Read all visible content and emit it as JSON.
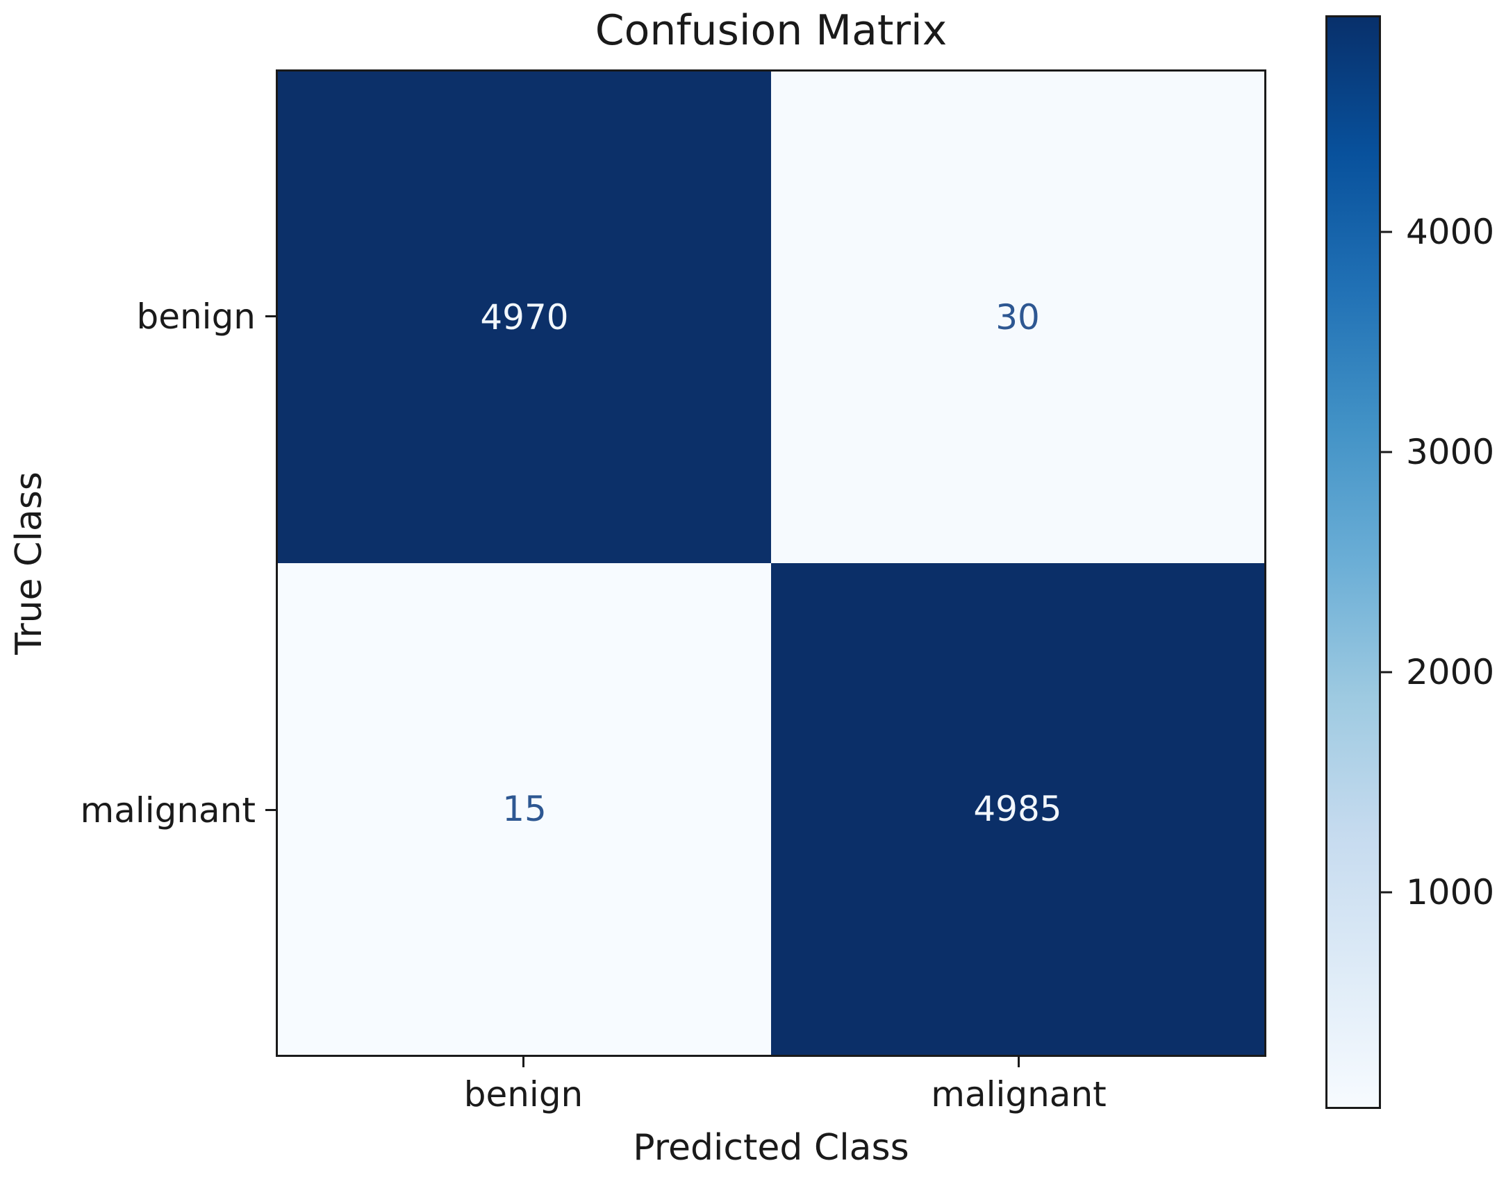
{
  "title": "Confusion Matrix",
  "axes": {
    "x_label": "Predicted Class",
    "y_label": "True Class",
    "x_ticks": [
      "benign",
      "malignant"
    ],
    "y_ticks": [
      "benign",
      "malignant"
    ]
  },
  "colors": {
    "background": "#ffffff",
    "text": "#1a1a1a",
    "spine": "#1a1a1a",
    "dark_cell_text": "#f2f7fc",
    "light_cell_text": "#2d5792"
  },
  "chart_data": {
    "type": "heatmap",
    "title": "Confusion Matrix",
    "xlabel": "Predicted Class",
    "ylabel": "True Class",
    "x_categories": [
      "benign",
      "malignant"
    ],
    "y_categories": [
      "benign",
      "malignant"
    ],
    "values": [
      [
        4970,
        30
      ],
      [
        15,
        4985
      ]
    ],
    "colormap": "Blues",
    "vmin": 15,
    "vmax": 4985,
    "colorbar_ticks": [
      4000,
      3000,
      2000,
      1000
    ],
    "colorbar_position": "right",
    "grid": false,
    "cell_colors": [
      [
        "#0c3069",
        "#f6fafe"
      ],
      [
        "#f7fbff",
        "#0b2f68"
      ]
    ],
    "cell_text_colors": [
      [
        "#f2f7fc",
        "#2d5792"
      ],
      [
        "#2d5792",
        "#f2f7fc"
      ]
    ],
    "colormap_stops_top_to_bottom": [
      "#08306b",
      "#08519c",
      "#2171b5",
      "#4292c6",
      "#6baed6",
      "#9ecae1",
      "#c6dbef",
      "#deebf7",
      "#f7fbff"
    ]
  }
}
